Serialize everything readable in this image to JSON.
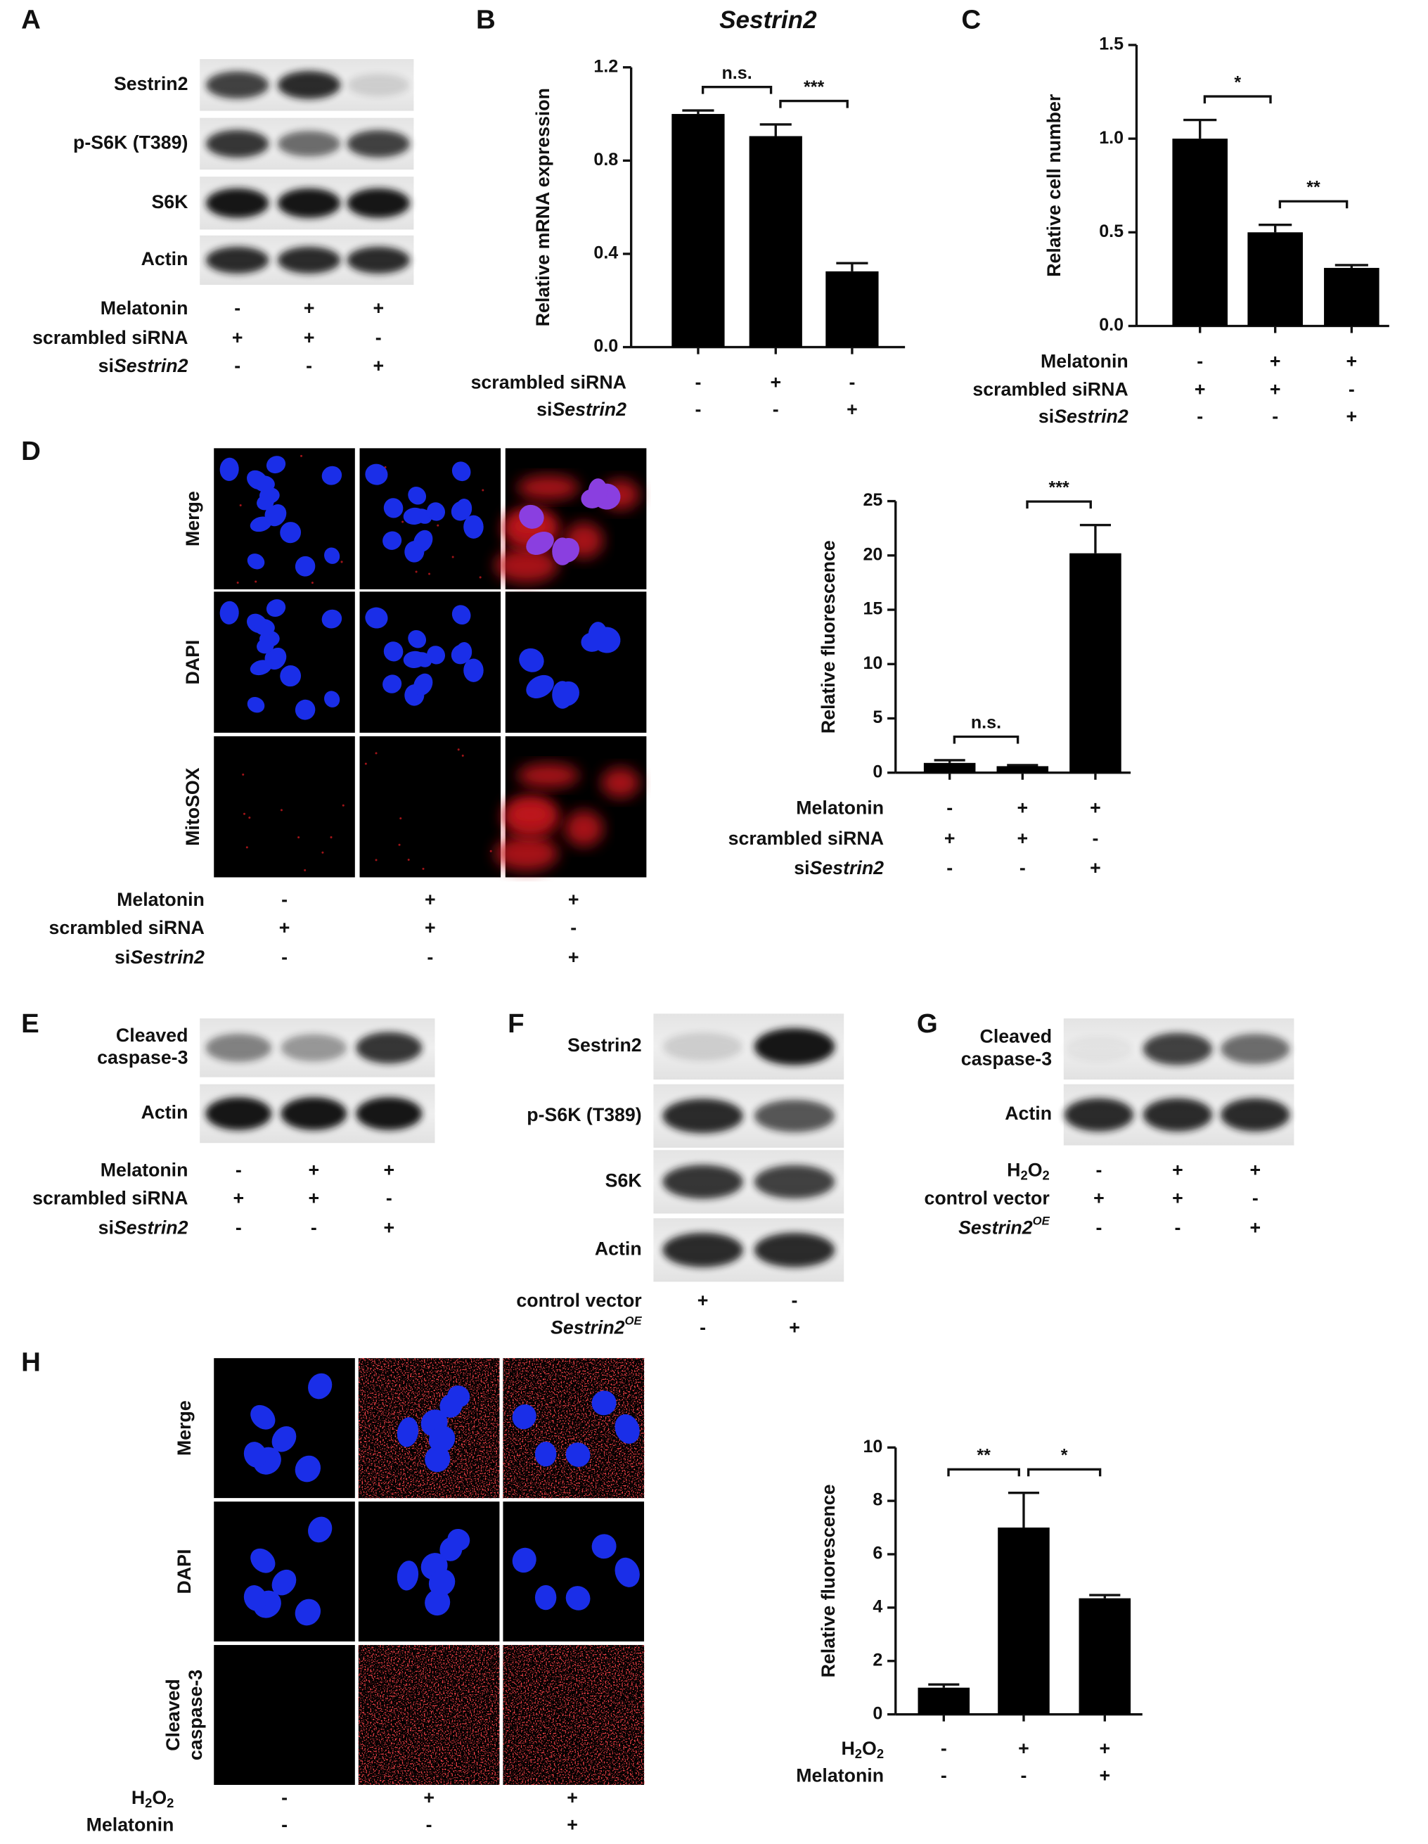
{
  "panel_labels": [
    "A",
    "B",
    "C",
    "D",
    "E",
    "F",
    "G",
    "H"
  ],
  "blots": [
    {
      "bands": [
        "Sestrin2",
        "p-S6K (T389)",
        "S6K",
        "Actin"
      ],
      "conditions": [
        {
          "label": "Melatonin",
          "marks": [
            "-",
            "+",
            "+"
          ]
        },
        {
          "label": "scrambled siRNA",
          "marks": [
            "+",
            "+",
            "-"
          ]
        },
        {
          "label": [
            {
              "text": "si"
            },
            {
              "text": "Sestrin2",
              "style": "italic"
            }
          ],
          "marks": [
            "-",
            "-",
            "+"
          ]
        }
      ]
    },
    {
      "bands": [
        [
          "Cleaved",
          "caspase-3"
        ],
        "Actin"
      ],
      "conditions": [
        {
          "label": "Melatonin",
          "marks": [
            "-",
            "+",
            "+"
          ]
        },
        {
          "label": "scrambled siRNA",
          "marks": [
            "+",
            "+",
            "-"
          ]
        },
        {
          "label": [
            {
              "text": "si"
            },
            {
              "text": "Sestrin2",
              "style": "italic"
            }
          ],
          "marks": [
            "-",
            "-",
            "+"
          ]
        }
      ]
    },
    {
      "bands": [
        "Sestrin2",
        "p-S6K (T389)",
        "S6K",
        "Actin"
      ],
      "conditions": [
        {
          "label": "control vector",
          "marks": [
            "+",
            "-"
          ]
        },
        {
          "label": [
            {
              "text": "Sestrin2",
              "style": "italic"
            },
            {
              "text": "OE",
              "style": "sup"
            }
          ],
          "marks": [
            "-",
            "+"
          ]
        }
      ]
    },
    {
      "bands": [
        [
          "Cleaved",
          "caspase-3"
        ],
        "Actin"
      ],
      "conditions": [
        {
          "label": [
            {
              "text": "H"
            },
            {
              "text": "2",
              "style": "sub"
            },
            {
              "text": "O"
            },
            {
              "text": "2",
              "style": "sub"
            }
          ],
          "marks": [
            "-",
            "+",
            "+"
          ]
        },
        {
          "label": "control vector",
          "marks": [
            "+",
            "+",
            "-"
          ]
        },
        {
          "label": [
            {
              "text": "Sestrin2",
              "style": "italic"
            },
            {
              "text": "OE",
              "style": "sup"
            }
          ],
          "marks": [
            "-",
            "-",
            "+"
          ]
        }
      ]
    }
  ],
  "images": [
    {
      "rows": [
        "Merge",
        "DAPI",
        "MitoSOX"
      ],
      "conditions": [
        {
          "label": "Melatonin",
          "marks": [
            "-",
            "+",
            "+"
          ]
        },
        {
          "label": "scrambled siRNA",
          "marks": [
            "+",
            "+",
            "-"
          ]
        },
        {
          "label": [
            {
              "text": "si"
            },
            {
              "text": "Sestrin2",
              "style": "italic"
            }
          ],
          "marks": [
            "-",
            "-",
            "+"
          ]
        }
      ]
    },
    {
      "rows": [
        "Merge",
        "DAPI",
        [
          "Cleaved",
          "caspase-3"
        ]
      ],
      "conditions": [
        {
          "label": [
            {
              "text": "H"
            },
            {
              "text": "2",
              "style": "sub"
            },
            {
              "text": "O"
            },
            {
              "text": "2",
              "style": "sub"
            }
          ],
          "marks": [
            "-",
            "+",
            "+"
          ]
        },
        {
          "label": "Melatonin",
          "marks": [
            "-",
            "-",
            "+"
          ]
        }
      ]
    }
  ],
  "chart_data": [
    {
      "type": "bar",
      "title": "Sestrin2",
      "y_label": "Relative mRNA expression",
      "categories": [
        null,
        null,
        null
      ],
      "values": [
        1.0,
        0.905,
        0.325
      ],
      "errors": [
        0.015,
        0.05,
        0.035
      ],
      "color": "#000000",
      "ylim": [
        0,
        1.2
      ],
      "yticks": [
        {
          "value": 0,
          "label": "0.0"
        },
        0.4,
        0.8,
        1.2
      ],
      "significance": [
        "n.s.",
        "***"
      ],
      "conditions": [
        {
          "label": "scrambled siRNA",
          "marks": [
            "-",
            "+",
            "-"
          ]
        },
        {
          "label": [
            {
              "text": "si"
            },
            {
              "text": "Sestrin2",
              "style": "italic"
            }
          ],
          "marks": [
            "-",
            "-",
            "+"
          ]
        }
      ]
    },
    {
      "type": "bar",
      "y_label": "Relative cell number",
      "categories": [
        null,
        null,
        null
      ],
      "values": [
        1.0,
        0.5,
        0.31
      ],
      "errors": [
        0.1,
        0.04,
        0.015
      ],
      "color": "#000000",
      "ylim": [
        0,
        1.5
      ],
      "yticks": [
        {
          "value": 0,
          "label": "0.0"
        },
        0.5,
        {
          "value": 1,
          "label": "1.0"
        },
        1.5
      ],
      "significance": [
        "*",
        "**"
      ],
      "conditions": [
        {
          "label": "Melatonin",
          "marks": [
            "-",
            "+",
            "+"
          ]
        },
        {
          "label": "scrambled siRNA",
          "marks": [
            "+",
            "+",
            "-"
          ]
        },
        {
          "label": [
            {
              "text": "si"
            },
            {
              "text": "Sestrin2",
              "style": "italic"
            }
          ],
          "marks": [
            "-",
            "-",
            "+"
          ]
        }
      ]
    },
    {
      "type": "bar",
      "y_label": "Relative fluorescence",
      "categories": [
        null,
        null,
        null
      ],
      "values": [
        0.9,
        0.6,
        20.2
      ],
      "errors": [
        0.25,
        0.1,
        2.6
      ],
      "color": "#000000",
      "ylim": [
        0,
        25
      ],
      "yticks": [
        0,
        5,
        10,
        15,
        20,
        25
      ],
      "significance": [
        "n.s.",
        "***"
      ],
      "conditions": [
        {
          "label": "Melatonin",
          "marks": [
            "-",
            "+",
            "+"
          ]
        },
        {
          "label": "scrambled siRNA",
          "marks": [
            "+",
            "+",
            "-"
          ]
        },
        {
          "label": [
            {
              "text": "si"
            },
            {
              "text": "Sestrin2",
              "style": "italic"
            }
          ],
          "marks": [
            "-",
            "-",
            "+"
          ]
        }
      ]
    },
    {
      "type": "bar",
      "y_label": "Relative fluorescence",
      "categories": [
        null,
        null,
        null
      ],
      "values": [
        1.0,
        7.0,
        4.35
      ],
      "errors": [
        0.12,
        1.3,
        0.12
      ],
      "color": "#000000",
      "ylim": [
        0,
        10
      ],
      "yticks": [
        0,
        2,
        4,
        6,
        8,
        10
      ],
      "significance": [
        "**",
        "*"
      ],
      "conditions": [
        {
          "label": [
            {
              "text": "H"
            },
            {
              "text": "2",
              "style": "sub"
            },
            {
              "text": "O"
            },
            {
              "text": "2",
              "style": "sub"
            }
          ],
          "marks": [
            "-",
            "+",
            "+"
          ]
        },
        {
          "label": "Melatonin",
          "marks": [
            "-",
            "-",
            "+"
          ]
        }
      ]
    }
  ]
}
